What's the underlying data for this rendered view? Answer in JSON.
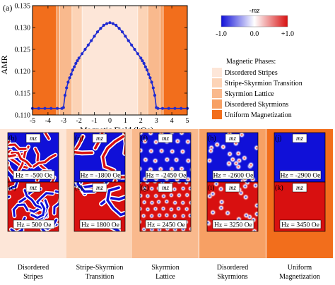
{
  "chart_data": {
    "type": "line",
    "panel_label": "(a)",
    "xlabel": "Magnetic Field (kOe)",
    "ylabel": "AMR",
    "xlim": [
      -5,
      5
    ],
    "ylim": [
      0.11,
      0.135
    ],
    "xticks": [
      "-5",
      "-4",
      "-3",
      "-2",
      "-1",
      "0",
      "1",
      "2",
      "3",
      "4",
      "5"
    ],
    "yticks": [
      "0.110",
      "0.115",
      "0.120",
      "0.125",
      "0.130",
      "0.135"
    ],
    "grid": false,
    "phase_bands": [
      {
        "phase": "Uniform Magnetization",
        "from": -5.0,
        "to": -3.45,
        "color": "#f26e1c"
      },
      {
        "phase": "Disordered Skyrmions",
        "from": -3.45,
        "to": -3.25,
        "color": "#f7a064"
      },
      {
        "phase": "Skyrmion Lattice",
        "from": -3.25,
        "to": -2.45,
        "color": "#f9b98d"
      },
      {
        "phase": "Stripe-Skyrmion Transition",
        "from": -2.45,
        "to": -1.8,
        "color": "#fcd3b6"
      },
      {
        "phase": "Disordered Stripes",
        "from": -1.8,
        "to": 1.8,
        "color": "#fde6d8"
      },
      {
        "phase": "Stripe-Skyrmion Transition",
        "from": 1.8,
        "to": 2.45,
        "color": "#fcd3b6"
      },
      {
        "phase": "Skyrmion Lattice",
        "from": 2.45,
        "to": 3.25,
        "color": "#f9b98d"
      },
      {
        "phase": "Disordered Skyrmions",
        "from": 3.25,
        "to": 3.45,
        "color": "#f7a064"
      },
      {
        "phase": "Uniform Magnetization",
        "from": 3.45,
        "to": 5.0,
        "color": "#f26e1c"
      }
    ],
    "series": [
      {
        "color": "#1f2ad1",
        "x": [
          -5.0,
          -4.6,
          -4.2,
          -3.8,
          -3.4,
          -3.1,
          -3.0,
          -2.9,
          -2.8,
          -2.7,
          -2.6,
          -2.5,
          -2.4,
          -2.3,
          -2.2,
          -2.1,
          -2.0,
          -1.8,
          -1.6,
          -1.4,
          -1.2,
          -1.0,
          -0.8,
          -0.6,
          -0.4,
          -0.2,
          0.0,
          0.2,
          0.4,
          0.6,
          0.8,
          1.0,
          1.2,
          1.4,
          1.6,
          1.8,
          2.0,
          2.1,
          2.2,
          2.3,
          2.4,
          2.5,
          2.6,
          2.7,
          2.8,
          2.9,
          3.0,
          3.1,
          3.4,
          3.8,
          4.2,
          4.6,
          5.0
        ],
        "y": [
          0.1115,
          0.1115,
          0.1115,
          0.1115,
          0.1115,
          0.1115,
          0.1117,
          0.1145,
          0.1162,
          0.1175,
          0.1185,
          0.1193,
          0.1203,
          0.121,
          0.1218,
          0.1224,
          0.123,
          0.124,
          0.125,
          0.126,
          0.127,
          0.128,
          0.129,
          0.1298,
          0.1305,
          0.1309,
          0.1311,
          0.1309,
          0.1305,
          0.1298,
          0.129,
          0.128,
          0.127,
          0.126,
          0.125,
          0.124,
          0.123,
          0.1224,
          0.1218,
          0.121,
          0.1203,
          0.1193,
          0.1185,
          0.1175,
          0.1162,
          0.1145,
          0.1117,
          0.1115,
          0.1115,
          0.1115,
          0.1115,
          0.1115,
          0.1115
        ]
      }
    ]
  },
  "colorbar": {
    "title": "-mz",
    "tick_labels": [
      "-1.0",
      "0.0",
      "+1.0"
    ],
    "colors": [
      "#1010d8",
      "#ffffff",
      "#d81010"
    ]
  },
  "legend": {
    "title": "Magnetic Phases:",
    "items": [
      {
        "label": "Disordered Stripes",
        "color": "#fde6d8"
      },
      {
        "label": "Stripe-Skyrmion Transition",
        "color": "#fcd3b6"
      },
      {
        "label": "Skyrmion Lattice",
        "color": "#f9b98d"
      },
      {
        "label": "Disordered Skyrmions",
        "color": "#f7a064"
      },
      {
        "label": "Uniform Magnetization",
        "color": "#f26e1c"
      }
    ]
  },
  "snapshots": {
    "badge": "mz",
    "columns": [
      {
        "caption_line1": "Disordered",
        "caption_line2": "Stripes",
        "frame_color": "#fde6d8",
        "top": {
          "label": "(b)",
          "field": "Hz = -500 Oe",
          "kind": "stripes-dense"
        },
        "bottom": {
          "label": "(c)",
          "field": "Hz = 500 Oe",
          "kind": "stripes-dense"
        }
      },
      {
        "caption_line1": "Stripe-Skyrmion",
        "caption_line2": "Transition",
        "frame_color": "#fcd3b6",
        "top": {
          "label": "(d)",
          "field": "Hz = -1800 Oe",
          "kind": "stripes-sparse"
        },
        "bottom": {
          "label": "(e)",
          "field": "Hz = 1800 Oe",
          "kind": "stripes-sparse"
        }
      },
      {
        "caption_line1": "Skyrmion",
        "caption_line2": "Lattice",
        "frame_color": "#f9b98d",
        "top": {
          "label": "(f)",
          "field": "Hz = -2450 Oe",
          "kind": "lattice"
        },
        "bottom": {
          "label": "(g)",
          "field": "Hz = 2450 Oe",
          "kind": "lattice-dense"
        }
      },
      {
        "caption_line1": "Disordered",
        "caption_line2": "Skyrmions",
        "frame_color": "#f7a064",
        "top": {
          "label": "(h)",
          "field": "Hz = -2600 Oe",
          "kind": "disordered"
        },
        "bottom": {
          "label": "(i)",
          "field": "Hz = 3250 Oe",
          "kind": "disordered"
        }
      },
      {
        "caption_line1": "Uniform",
        "caption_line2": "Magnetization",
        "frame_color": "#f26e1c",
        "top": {
          "label": "(j)",
          "field": "Hz = -2900 Oe",
          "kind": "uniform"
        },
        "bottom": {
          "label": "(k)",
          "field": "Hz = 3450 Oe",
          "kind": "uniform"
        }
      }
    ]
  }
}
